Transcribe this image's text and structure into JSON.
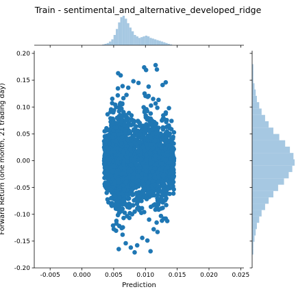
{
  "chart_data": {
    "type": "scatter",
    "title": "Train - sentimental_and_alternative_developed_ridge",
    "xlabel": "Prediction",
    "ylabel": "Forward Return (one month, 21 trading day)",
    "xlim": [
      -0.0075,
      0.0255
    ],
    "ylim": [
      -0.2,
      0.205
    ],
    "x_ticks": [
      "-0.005",
      "0.000",
      "0.005",
      "0.010",
      "0.015",
      "0.020",
      "0.025"
    ],
    "x_tick_values": [
      -0.005,
      0.0,
      0.005,
      0.01,
      0.015,
      0.02,
      0.025
    ],
    "y_ticks": [
      "-0.20",
      "-0.15",
      "-0.10",
      "-0.05",
      "0.00",
      "0.05",
      "0.10",
      "0.15",
      "0.20"
    ],
    "y_tick_values": [
      -0.2,
      -0.15,
      -0.1,
      -0.05,
      0.0,
      0.05,
      0.1,
      0.15,
      0.2
    ],
    "point_color": "#1f77b4",
    "hist_color": "#a6c8e2",
    "scatter_cloud": {
      "x_range": [
        0.0035,
        0.0145
      ],
      "y_range": [
        -0.175,
        0.18
      ],
      "note": "dense cloud of several thousand points"
    },
    "points": [
      [
        0.0057,
        0.163
      ],
      [
        0.0061,
        0.159
      ],
      [
        0.0098,
        0.174
      ],
      [
        0.0101,
        0.169
      ],
      [
        0.0116,
        0.178
      ],
      [
        0.0118,
        0.17
      ],
      [
        0.0081,
        0.148
      ],
      [
        0.0089,
        0.145
      ],
      [
        0.0064,
        0.139
      ],
      [
        0.0132,
        0.146
      ],
      [
        0.0127,
        0.141
      ],
      [
        0.0073,
        0.136
      ],
      [
        0.0105,
        0.138
      ],
      [
        0.0058,
        -0.165
      ],
      [
        0.0077,
        -0.162
      ],
      [
        0.0083,
        -0.171
      ],
      [
        0.0108,
        -0.169
      ],
      [
        0.0103,
        -0.149
      ],
      [
        0.0069,
        -0.154
      ],
      [
        0.0087,
        -0.158
      ],
      [
        0.0095,
        -0.144
      ],
      [
        0.0113,
        -0.128
      ],
      [
        0.0119,
        -0.133
      ],
      [
        0.0126,
        -0.112
      ],
      [
        0.0064,
        -0.138
      ],
      [
        0.0049,
        -0.121
      ],
      [
        0.0046,
        -0.028
      ],
      [
        0.0043,
        0.032
      ],
      [
        0.0039,
        0.058
      ],
      [
        0.0036,
        0.01
      ],
      [
        0.0042,
        -0.045
      ],
      [
        0.0138,
        -0.062
      ],
      [
        0.0141,
        0.074
      ],
      [
        0.0137,
        0.098
      ],
      [
        0.0135,
        0.01
      ]
    ],
    "top_histogram": {
      "bin_edges": [
        0.0032,
        0.0142
      ],
      "counts": [
        1,
        2,
        3,
        5,
        8,
        14,
        22,
        31,
        38,
        40,
        36,
        30,
        24,
        19,
        14,
        12,
        10,
        11,
        12,
        13,
        12,
        10,
        9,
        8,
        7,
        6,
        5,
        4,
        3,
        2,
        1
      ]
    },
    "right_histogram": {
      "bin_edges": [
        -0.175,
        0.18
      ],
      "counts": [
        1,
        1,
        2,
        3,
        4,
        6,
        8,
        11,
        14,
        18,
        22,
        27,
        31,
        34,
        36,
        35,
        32,
        28,
        23,
        18,
        14,
        11,
        8,
        6,
        4,
        3,
        2,
        1,
        1,
        1
      ]
    }
  }
}
